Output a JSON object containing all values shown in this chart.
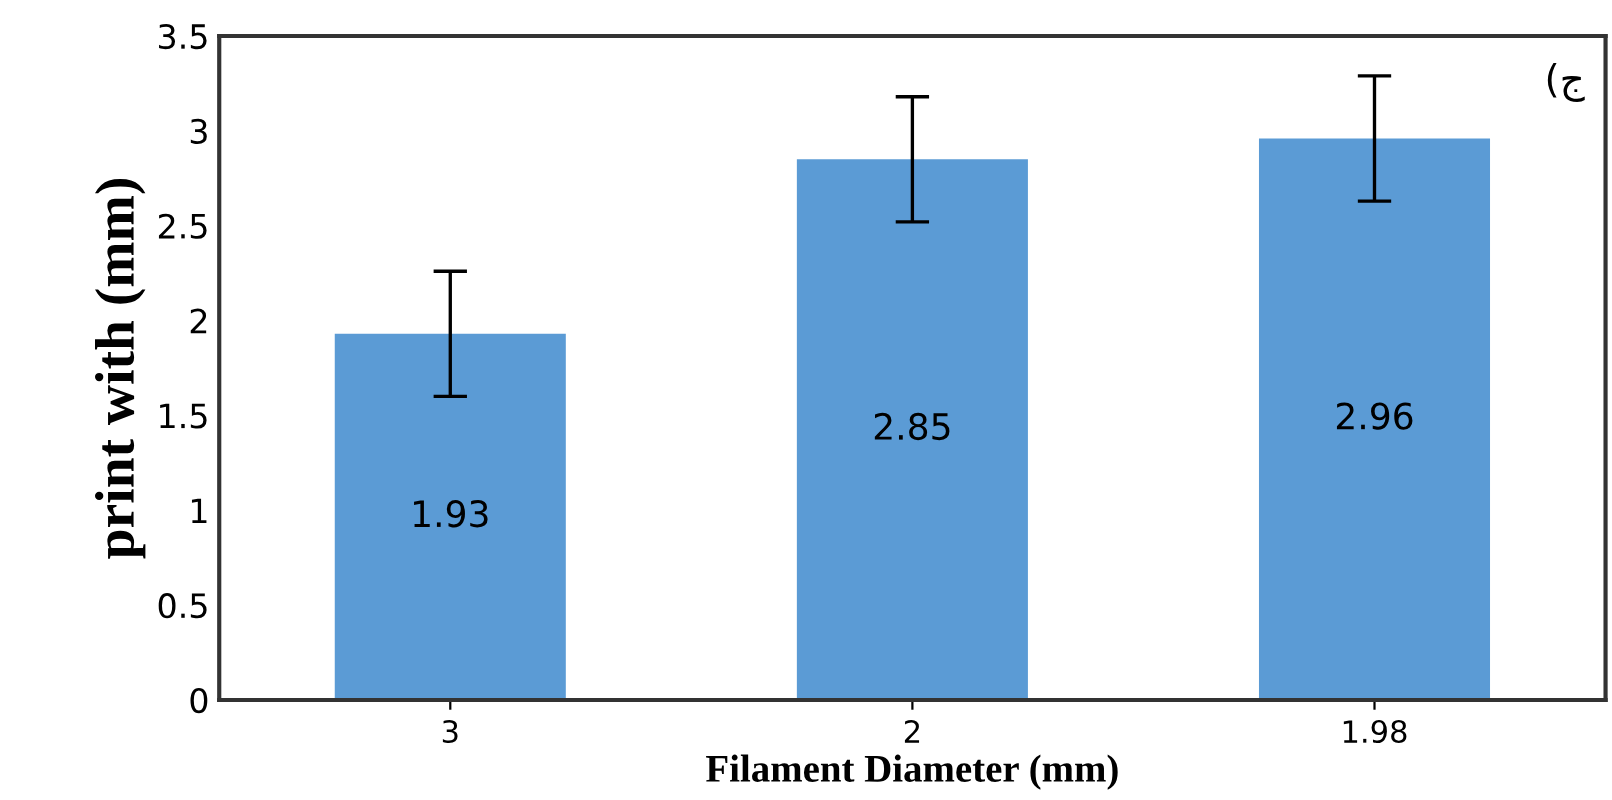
{
  "chart_data": {
    "type": "bar",
    "xlabel": "Filament Diameter (mm)",
    "ylabel": "print with (mm)",
    "categories": [
      "3",
      "2",
      "1.98"
    ],
    "values": [
      1.93,
      2.85,
      2.96
    ],
    "errors": [
      0.33,
      0.33,
      0.33
    ],
    "color": "#5b9bd5",
    "data_labels": true,
    "ylim": [
      0,
      3.5
    ],
    "yticks": [
      0,
      0.5,
      1,
      1.5,
      2,
      2.5,
      3,
      3.5
    ],
    "annotations": [
      "(ج"
    ],
    "grid": false,
    "legend": false
  }
}
